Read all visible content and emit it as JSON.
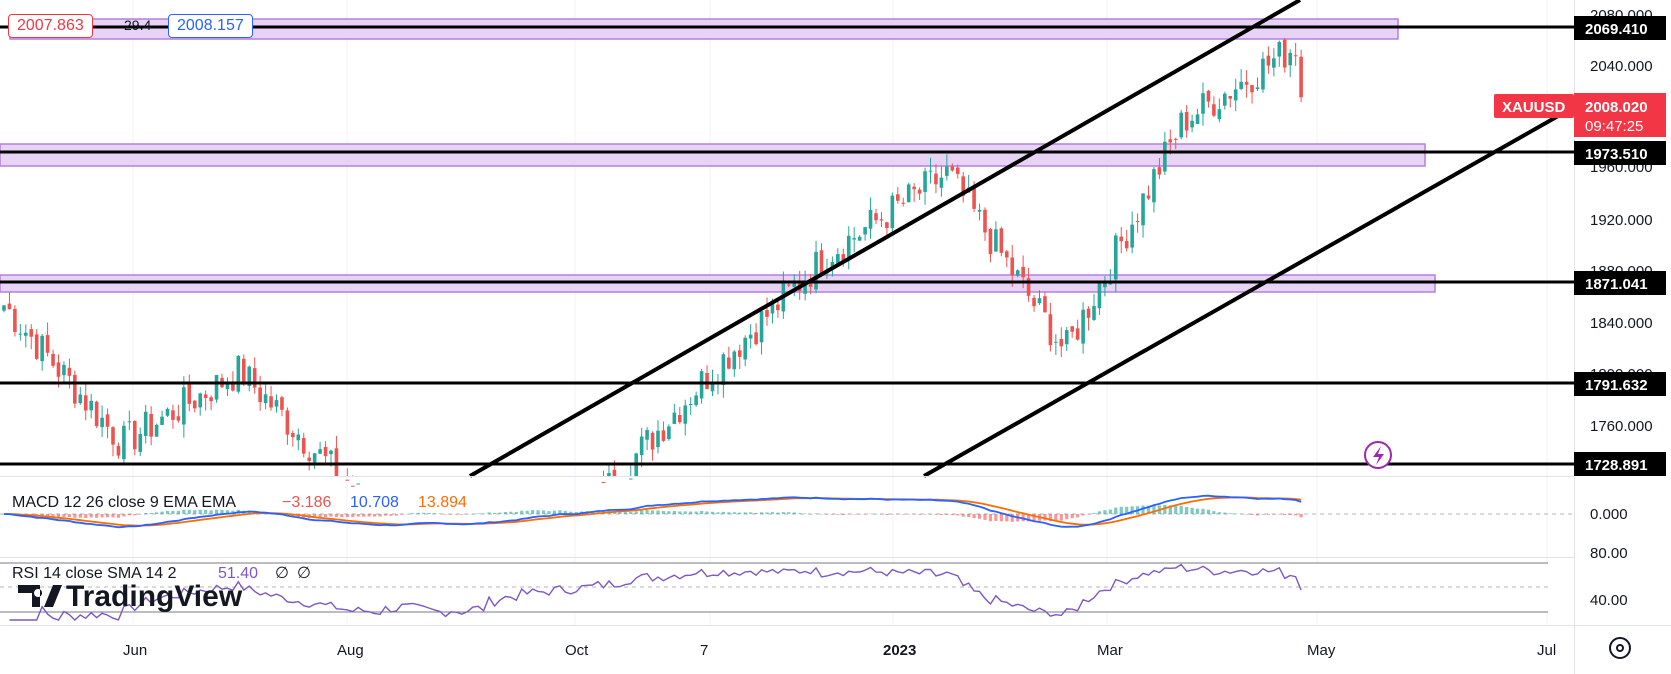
{
  "header": {
    "bid": "2007.863",
    "spread": "29.4",
    "ask": "2008.157"
  },
  "colors": {
    "up": "#26a69a",
    "down": "#ef5350",
    "zone_fill": "#e7d3f5",
    "zone_border": "#b57edc",
    "macd_line": "#2962ff",
    "signal_line": "#ff6d00",
    "rsi_line": "#7e57c2",
    "label_bg": "#000000",
    "current_price_bg": "#f23645"
  },
  "main_chart": {
    "symbol": "XAUUSD",
    "current_price": "2008.020",
    "countdown": "09:47:25",
    "price_labels": [
      "2080.000",
      "2040.000",
      "1960.000",
      "1920.000",
      "1880.000",
      "1840.000",
      "1800.000",
      "1760.000"
    ],
    "level_labels": [
      "2069.410",
      "1973.510",
      "1871.041",
      "1791.632",
      "1728.891"
    ],
    "x_labels": [
      "Jun",
      "Aug",
      "Oct",
      "7",
      "2023",
      "Mar",
      "May",
      "Jul"
    ]
  },
  "macd": {
    "title": "MACD 12 26 close 9 EMA EMA",
    "hist_value": "−3.186",
    "macd_value": "10.708",
    "signal_value": "13.894",
    "zero_label": "0.000"
  },
  "rsi": {
    "title": "RSI 14 close SMA 14 2",
    "value": "51.40",
    "extra1": "∅",
    "extra2": "∅",
    "label_80": "80.00",
    "label_40": "40.00"
  },
  "watermark": "TradingView",
  "chart_data": {
    "type": "candlestick",
    "symbol": "XAUUSD",
    "x_ticks": [
      "Jun",
      "Aug",
      "Oct",
      "7",
      "2023",
      "Mar",
      "May",
      "Jul"
    ],
    "y_range": [
      1720,
      2082
    ],
    "horizontal_levels": [
      2069.41,
      1973.51,
      1871.041,
      1791.632,
      1728.891
    ],
    "zones": [
      [
        2062,
        2075
      ],
      [
        1964,
        1981
      ],
      [
        1862,
        1879
      ]
    ],
    "trend_channel": {
      "upper": [
        [
          "Aug 30",
          1730
        ],
        [
          "May 1",
          2115
        ]
      ],
      "lower": [
        [
          "Dec 12",
          1729
        ],
        [
          "Jul 1",
          2005
        ]
      ]
    },
    "anchors": [
      {
        "x": "Jun 2022",
        "price": 1850
      },
      {
        "x": "Jul 2022",
        "price": 1745
      },
      {
        "x": "Aug 2022",
        "price": 1800
      },
      {
        "x": "Sep 2022",
        "price": 1705
      },
      {
        "x": "Oct 2022",
        "price": 1660
      },
      {
        "x": "Nov 2022",
        "price": 1700
      },
      {
        "x": "Dec 2022",
        "price": 1800
      },
      {
        "x": "Jan 2023",
        "price": 1890
      },
      {
        "x": "Feb 2023",
        "price": 1950
      },
      {
        "x": "Mar 2023",
        "price": 1815
      },
      {
        "x": "Apr 2023",
        "price": 1990
      },
      {
        "x": "May 2023",
        "price": 2050
      }
    ],
    "last_price": 2008.02
  }
}
